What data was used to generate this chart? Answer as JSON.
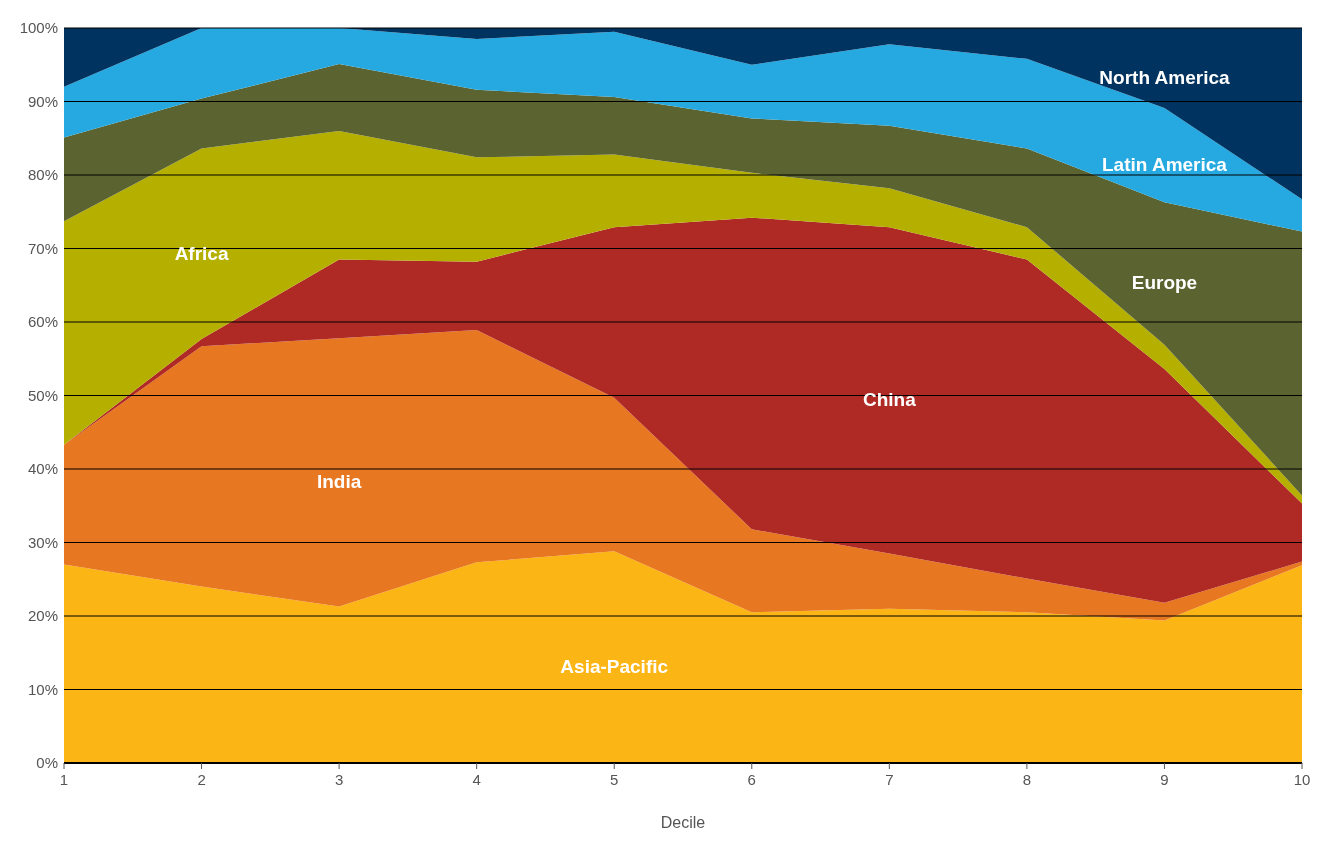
{
  "chart_data": {
    "type": "area",
    "stacked": true,
    "xlabel": "Decile",
    "x": [
      1,
      2,
      3,
      4,
      5,
      6,
      7,
      8,
      9,
      10
    ],
    "xlim": [
      1,
      10
    ],
    "xticks": [
      1,
      2,
      3,
      4,
      5,
      6,
      7,
      8,
      9,
      10
    ],
    "ylim": [
      0,
      100
    ],
    "yticks": [
      {
        "value": 0,
        "label": "0%"
      },
      {
        "value": 10,
        "label": "10%"
      },
      {
        "value": 20,
        "label": "20%"
      },
      {
        "value": 30,
        "label": "30%"
      },
      {
        "value": 40,
        "label": "40%"
      },
      {
        "value": 50,
        "label": "50%"
      },
      {
        "value": 60,
        "label": "60%"
      },
      {
        "value": 70,
        "label": "70%"
      },
      {
        "value": 80,
        "label": "80%"
      },
      {
        "value": 90,
        "label": "90%"
      },
      {
        "value": 100,
        "label": "100%"
      }
    ],
    "grid": "y",
    "series": [
      {
        "name": "Asia-Pacific",
        "color": "#fbb514",
        "values": [
          27.0,
          24.0,
          21.3,
          27.3,
          28.8,
          20.5,
          21.0,
          20.5,
          19.4,
          26.9
        ]
      },
      {
        "name": "India",
        "color": "#e87722",
        "values": [
          16.3,
          32.7,
          36.5,
          31.6,
          20.9,
          11.3,
          7.5,
          4.6,
          2.4,
          0.5
        ]
      },
      {
        "name": "China",
        "color": "#b02a25",
        "values": [
          0,
          1.0,
          10.7,
          9.3,
          23.2,
          42.4,
          44.4,
          43.4,
          31.8,
          7.9
        ]
      },
      {
        "name": "Africa",
        "color": "#b5b000",
        "values": [
          30.4,
          25.9,
          17.5,
          14.2,
          9.9,
          6.1,
          5.3,
          4.4,
          3.3,
          1.1
        ]
      },
      {
        "name": "Europe",
        "color": "#5b6430",
        "values": [
          11.4,
          6.8,
          9.1,
          9.2,
          7.8,
          7.4,
          8.5,
          10.7,
          19.4,
          35.9
        ]
      },
      {
        "name": "Latin America",
        "color": "#26a9e0",
        "values": [
          6.9,
          9.6,
          4.9,
          6.9,
          8.9,
          7.3,
          11.1,
          12.2,
          12.8,
          4.4
        ]
      },
      {
        "name": "North America",
        "color": "#00335f",
        "values": [
          8.0,
          0,
          0,
          1.5,
          0.5,
          5.0,
          2.2,
          4.2,
          10.9,
          23.3
        ]
      }
    ]
  }
}
